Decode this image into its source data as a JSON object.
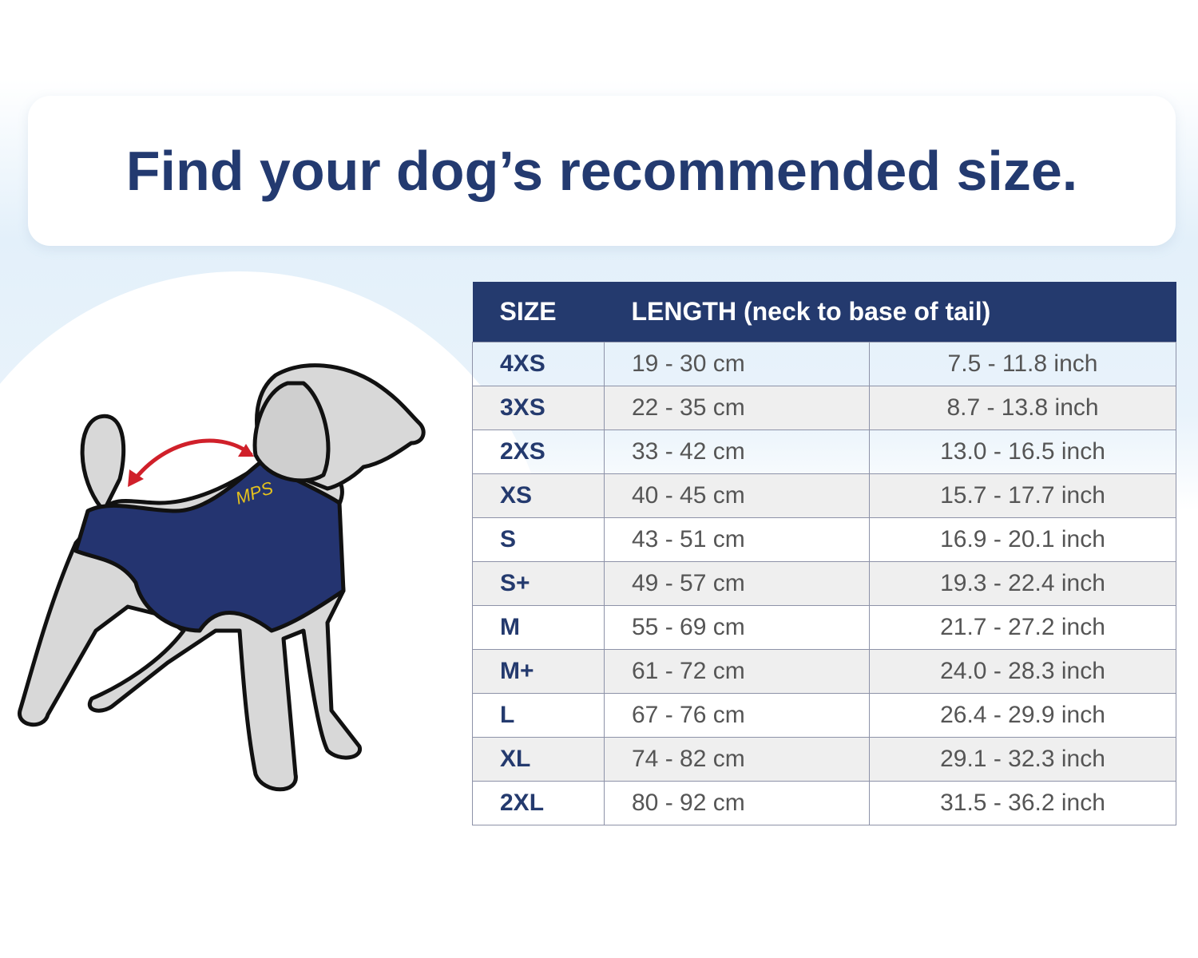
{
  "header": {
    "title": "Find your dog’s recommended size."
  },
  "illustration": {
    "logo": "MPS"
  },
  "table": {
    "columns": [
      "SIZE",
      "LENGTH (neck to base of tail)"
    ],
    "rows": [
      [
        "4XS",
        "19 - 30 cm",
        "7.5 - 11.8 inch"
      ],
      [
        "3XS",
        "22 - 35 cm",
        "8.7 - 13.8 inch"
      ],
      [
        "2XS",
        "33 - 42 cm",
        "13.0 - 16.5 inch"
      ],
      [
        "XS",
        "40 - 45 cm",
        "15.7 - 17.7 inch"
      ],
      [
        "S",
        "43 - 51 cm",
        "16.9 - 20.1 inch"
      ],
      [
        "S+",
        "49 - 57 cm",
        "19.3 - 22.4 inch"
      ],
      [
        "M",
        "55 - 69 cm",
        "21.7 - 27.2 inch"
      ],
      [
        "M+",
        "61 - 72 cm",
        "24.0 - 28.3 inch"
      ],
      [
        "L",
        "67 - 76 cm",
        "26.4 - 29.9 inch"
      ],
      [
        "XL",
        "74 - 82 cm",
        "29.1 - 32.3 inch"
      ],
      [
        "2XL",
        "80 - 92 cm",
        "31.5 - 36.2 inch"
      ]
    ]
  }
}
